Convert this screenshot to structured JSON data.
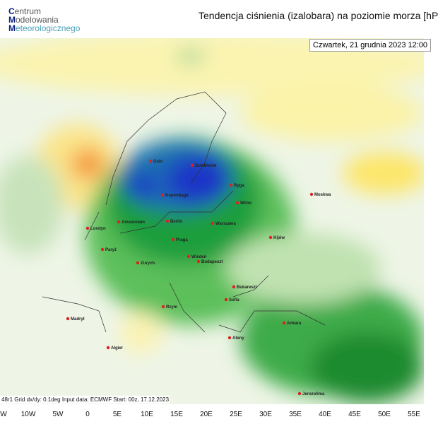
{
  "header": {
    "logo": [
      "Centrum",
      "Modelowania",
      "Meteorologicznego"
    ],
    "title": "Tendencja ciśnienia (izalobara) na poziomie morza  [hP",
    "date": "Czwartek, 21 grudnia 2023 12:00"
  },
  "map": {
    "cities": [
      "Oslo",
      "Sztokholm",
      "Ryga",
      "Moskwa",
      "Kopenhaga",
      "Wilno",
      "Amsterdam",
      "Berlin",
      "Warszawa",
      "Londyn",
      "Kijów",
      "Praga",
      "Paryż",
      "Wiedeń",
      "Zurych",
      "Budapeszt",
      "Bukareszt",
      "Rzym",
      "Sofia",
      "Madryt",
      "Ankara",
      "Ateny",
      "Algier",
      "Jerozolima"
    ],
    "longitude_labels": [
      "W",
      "10W",
      "5W",
      "0",
      "5E",
      "10E",
      "15E",
      "20E",
      "25E",
      "30E",
      "35E",
      "40E",
      "45E",
      "50E",
      "55E"
    ]
  },
  "footer": "48r1   Grid dx/dy: 0.1deg   Input data: ECMWF   Start: 00z, 17.12.2023"
}
